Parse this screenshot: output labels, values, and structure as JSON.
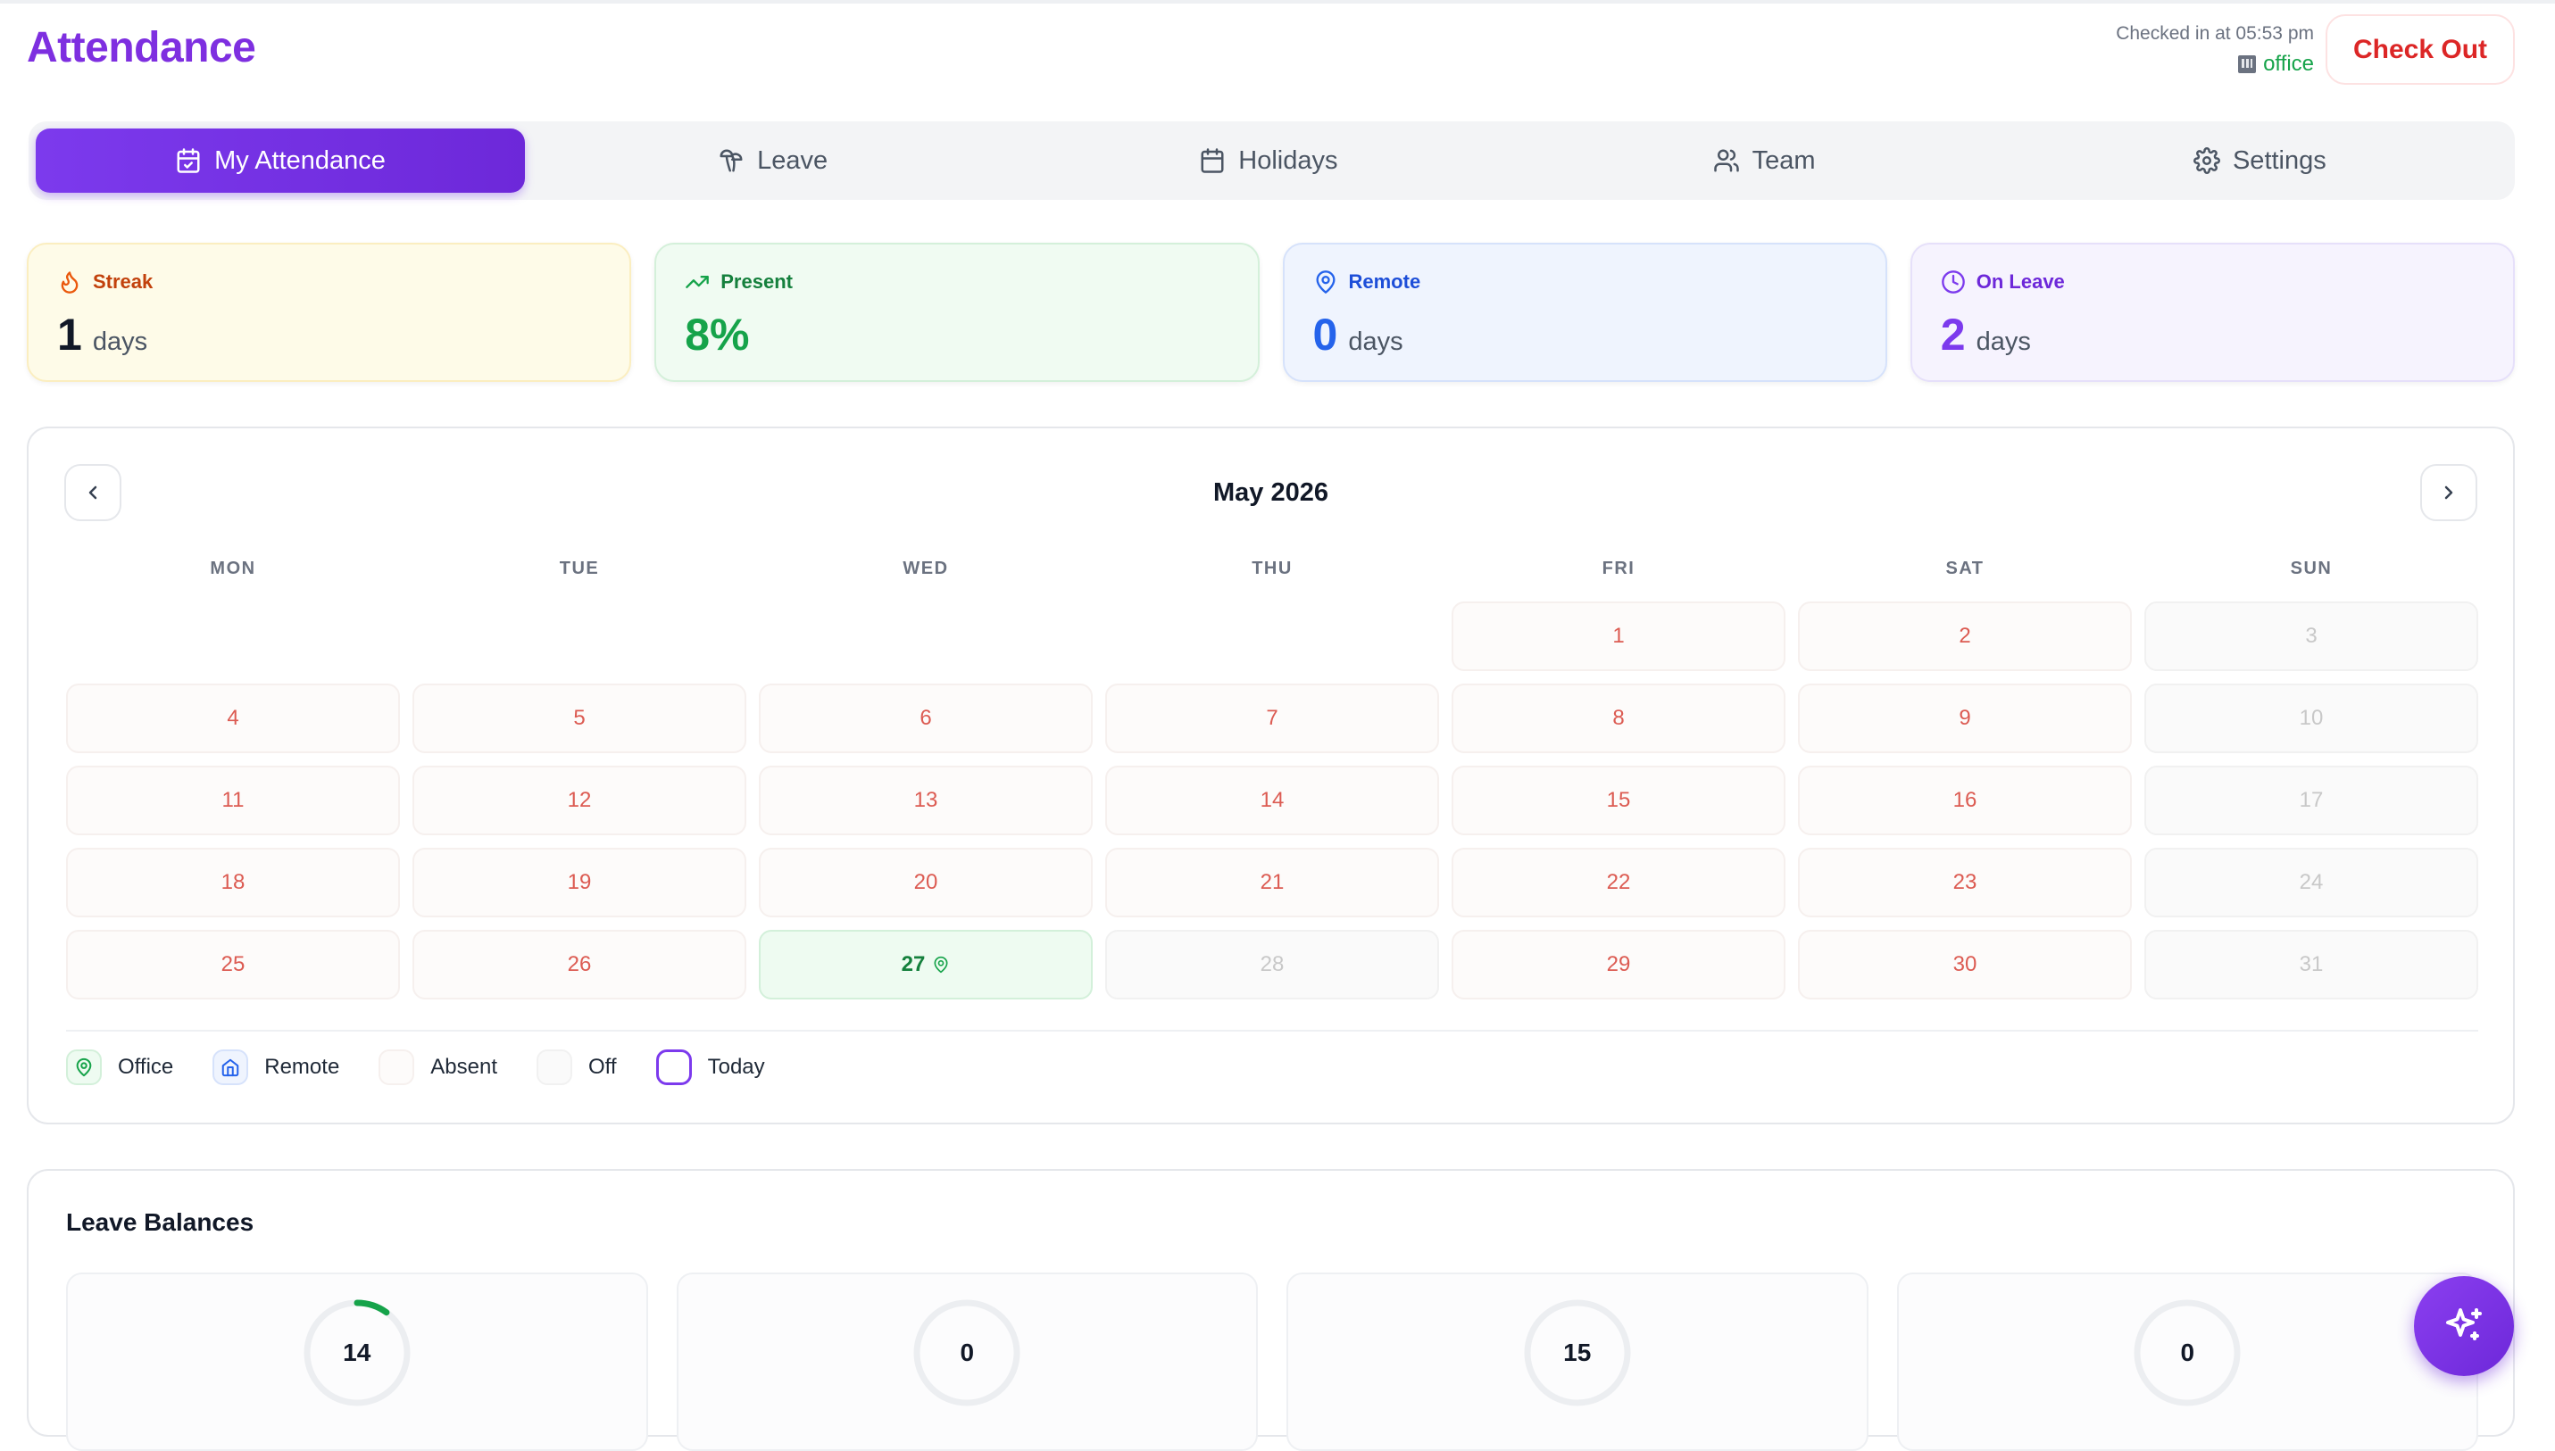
{
  "header": {
    "title": "Attendance",
    "checked_in_text": "Checked in at 05:53 pm",
    "location": "office",
    "checkout_label": "Check Out"
  },
  "tabs": [
    {
      "label": "My Attendance",
      "icon": "calendar-check-icon",
      "active": true
    },
    {
      "label": "Leave",
      "icon": "palm-tree-icon",
      "active": false
    },
    {
      "label": "Holidays",
      "icon": "calendar-icon",
      "active": false
    },
    {
      "label": "Team",
      "icon": "users-icon",
      "active": false
    },
    {
      "label": "Settings",
      "icon": "gear-icon",
      "active": false
    }
  ],
  "stats": {
    "streak": {
      "label": "Streak",
      "value": "1",
      "unit": "days",
      "icon": "flame-icon"
    },
    "present": {
      "label": "Present",
      "value": "8%",
      "icon": "trending-up-icon"
    },
    "remote": {
      "label": "Remote",
      "value": "0",
      "unit": "days",
      "icon": "map-pin-icon"
    },
    "on_leave": {
      "label": "On Leave",
      "value": "2",
      "unit": "days",
      "icon": "clock-icon"
    }
  },
  "calendar": {
    "month_label": "May 2026",
    "weekdays": [
      "MON",
      "TUE",
      "WED",
      "THU",
      "FRI",
      "SAT",
      "SUN"
    ],
    "leading_blanks": 4,
    "days": [
      {
        "d": "1",
        "s": "absent"
      },
      {
        "d": "2",
        "s": "absent"
      },
      {
        "d": "3",
        "s": "off"
      },
      {
        "d": "4",
        "s": "absent"
      },
      {
        "d": "5",
        "s": "absent"
      },
      {
        "d": "6",
        "s": "absent"
      },
      {
        "d": "7",
        "s": "absent"
      },
      {
        "d": "8",
        "s": "absent"
      },
      {
        "d": "9",
        "s": "absent"
      },
      {
        "d": "10",
        "s": "off"
      },
      {
        "d": "11",
        "s": "absent"
      },
      {
        "d": "12",
        "s": "absent"
      },
      {
        "d": "13",
        "s": "absent"
      },
      {
        "d": "14",
        "s": "absent"
      },
      {
        "d": "15",
        "s": "absent"
      },
      {
        "d": "16",
        "s": "absent"
      },
      {
        "d": "17",
        "s": "off"
      },
      {
        "d": "18",
        "s": "absent"
      },
      {
        "d": "19",
        "s": "absent"
      },
      {
        "d": "20",
        "s": "absent"
      },
      {
        "d": "21",
        "s": "absent"
      },
      {
        "d": "22",
        "s": "absent"
      },
      {
        "d": "23",
        "s": "absent"
      },
      {
        "d": "24",
        "s": "off"
      },
      {
        "d": "25",
        "s": "absent"
      },
      {
        "d": "26",
        "s": "absent"
      },
      {
        "d": "27",
        "s": "today"
      },
      {
        "d": "28",
        "s": "off"
      },
      {
        "d": "29",
        "s": "absent"
      },
      {
        "d": "30",
        "s": "absent"
      },
      {
        "d": "31",
        "s": "off"
      }
    ],
    "legend": {
      "office": "Office",
      "remote": "Remote",
      "absent": "Absent",
      "off": "Off",
      "today": "Today"
    }
  },
  "leave_balances": {
    "title": "Leave Balances",
    "items": [
      {
        "value": "14",
        "progress": 0.1
      },
      {
        "value": "0",
        "progress": 0
      },
      {
        "value": "15",
        "progress": 0
      },
      {
        "value": "0",
        "progress": 0
      }
    ]
  },
  "colors": {
    "accent": "#7c3aed",
    "present_green": "#16a34a",
    "absent_red": "#dc5b52",
    "remote_blue": "#2563eb"
  },
  "fab": {
    "icon": "sparkles-icon"
  }
}
